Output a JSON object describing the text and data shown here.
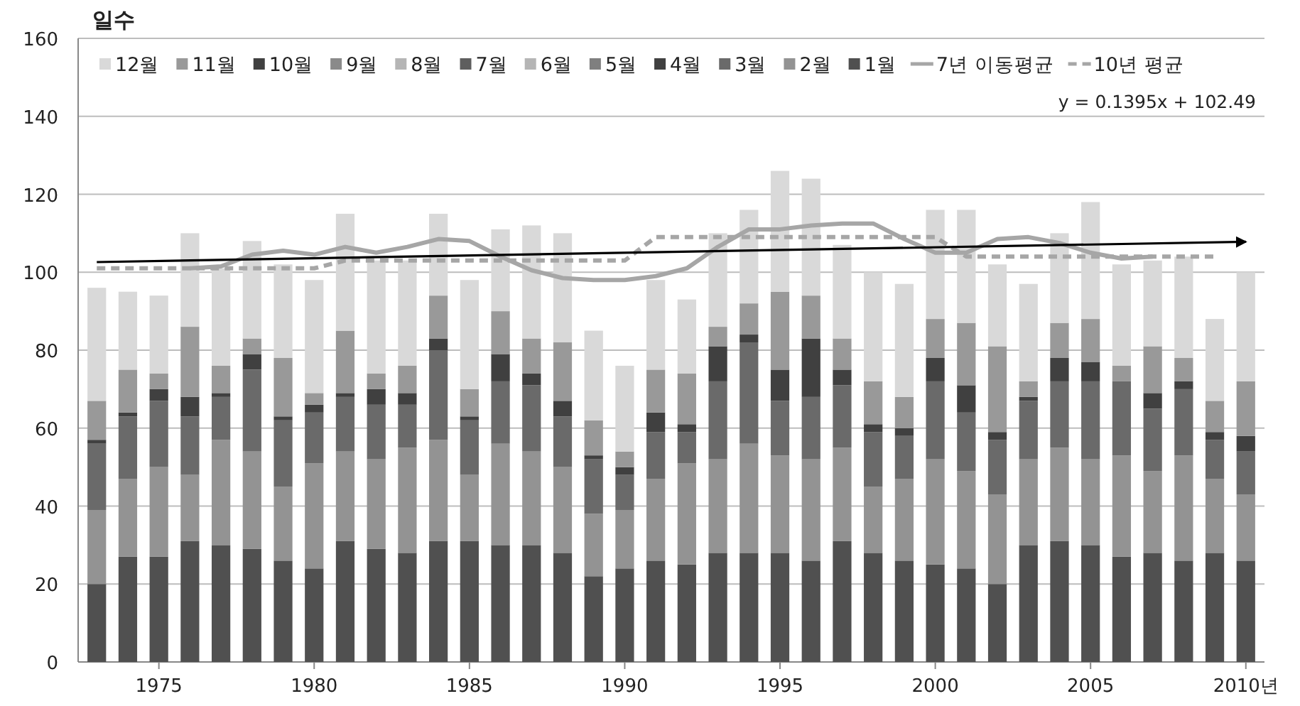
{
  "chart_data": {
    "type": "bar",
    "stacked": true,
    "ylabel": "일수",
    "x": [
      1973,
      1974,
      1975,
      1976,
      1977,
      1978,
      1979,
      1980,
      1981,
      1982,
      1983,
      1984,
      1985,
      1986,
      1987,
      1988,
      1989,
      1990,
      1991,
      1992,
      1993,
      1994,
      1995,
      1996,
      1997,
      1998,
      1999,
      2000,
      2001,
      2002,
      2003,
      2004,
      2005,
      2006,
      2007,
      2008,
      2009,
      2010
    ],
    "xlim": [
      1972.4,
      2010.6
    ],
    "xticks": [
      1975,
      1980,
      1985,
      1990,
      1995,
      2000,
      2005,
      {
        "value": 2010,
        "label": "2010년"
      }
    ],
    "ylim": [
      0,
      160
    ],
    "yticks": [
      0,
      20,
      40,
      60,
      80,
      100,
      120,
      140,
      160
    ],
    "grid": "y",
    "legend": "top",
    "annotations": [
      "y = 0.1395x + 102.49"
    ],
    "series": [
      {
        "name": "1월",
        "color": "#505050",
        "values": [
          20,
          27,
          27,
          31,
          30,
          29,
          26,
          24,
          31,
          29,
          28,
          31,
          31,
          30,
          30,
          28,
          22,
          24,
          26,
          25,
          28,
          28,
          28,
          26,
          31,
          28,
          26,
          25,
          24,
          20,
          30,
          31,
          30,
          27,
          28,
          26,
          28,
          26
        ]
      },
      {
        "name": "2월",
        "color": "#939393",
        "values": [
          19,
          20,
          23,
          17,
          27,
          25,
          19,
          27,
          23,
          23,
          27,
          26,
          17,
          26,
          24,
          22,
          16,
          15,
          21,
          26,
          24,
          28,
          25,
          26,
          24,
          17,
          21,
          27,
          25,
          23,
          22,
          24,
          22,
          26,
          21,
          27,
          19,
          17
        ]
      },
      {
        "name": "3월",
        "color": "#6a6a6a",
        "values": [
          17,
          16,
          17,
          15,
          11,
          21,
          17,
          13,
          14,
          14,
          11,
          23,
          14,
          16,
          17,
          13,
          14,
          9,
          12,
          8,
          20,
          26,
          14,
          16,
          16,
          14,
          11,
          20,
          15,
          14,
          15,
          17,
          20,
          19,
          16,
          17,
          10,
          11
        ]
      },
      {
        "name": "4월",
        "color": "#404040",
        "values": [
          1,
          1,
          3,
          5,
          1,
          4,
          1,
          2,
          1,
          4,
          3,
          3,
          1,
          7,
          3,
          4,
          1,
          2,
          5,
          2,
          9,
          2,
          8,
          15,
          4,
          2,
          2,
          6,
          7,
          2,
          1,
          6,
          5,
          0,
          4,
          2,
          2,
          4
        ]
      },
      {
        "name": "5월",
        "color": "#7f7f7f",
        "values": [
          0,
          0,
          0,
          0,
          0,
          0,
          0,
          0,
          0,
          0,
          0,
          0,
          0,
          0,
          0,
          0,
          0,
          0,
          0,
          0,
          0,
          0,
          0,
          0,
          0,
          0,
          0,
          0,
          0,
          0,
          0,
          0,
          0,
          0,
          0,
          0,
          0,
          0
        ]
      },
      {
        "name": "6월",
        "color": "#b5b5b5",
        "values": [
          0,
          0,
          0,
          0,
          0,
          0,
          0,
          0,
          0,
          0,
          0,
          0,
          0,
          0,
          0,
          0,
          0,
          0,
          0,
          0,
          0,
          0,
          0,
          0,
          0,
          0,
          0,
          0,
          0,
          0,
          0,
          0,
          0,
          0,
          0,
          0,
          0,
          0
        ]
      },
      {
        "name": "7월",
        "color": "#5e5e5e",
        "values": [
          0,
          0,
          0,
          0,
          0,
          0,
          0,
          0,
          0,
          0,
          0,
          0,
          0,
          0,
          0,
          0,
          0,
          0,
          0,
          0,
          0,
          0,
          0,
          0,
          0,
          0,
          0,
          0,
          0,
          0,
          0,
          0,
          0,
          0,
          0,
          0,
          0,
          0
        ]
      },
      {
        "name": "8월",
        "color": "#b5b5b5",
        "values": [
          0,
          0,
          0,
          0,
          0,
          0,
          0,
          0,
          0,
          0,
          0,
          0,
          0,
          0,
          0,
          0,
          0,
          0,
          0,
          0,
          0,
          0,
          0,
          0,
          0,
          0,
          0,
          0,
          0,
          0,
          0,
          0,
          0,
          0,
          0,
          0,
          0,
          0
        ]
      },
      {
        "name": "9월",
        "color": "#8a8a8a",
        "values": [
          0,
          0,
          0,
          0,
          0,
          0,
          0,
          0,
          0,
          0,
          0,
          0,
          0,
          0,
          0,
          0,
          0,
          0,
          0,
          0,
          0,
          0,
          0,
          0,
          0,
          0,
          0,
          0,
          0,
          0,
          0,
          0,
          0,
          0,
          0,
          0,
          0,
          0
        ]
      },
      {
        "name": "10월",
        "color": "#404040",
        "values": [
          0,
          0,
          0,
          0,
          0,
          0,
          0,
          0,
          0,
          0,
          0,
          0,
          0,
          0,
          0,
          0,
          0,
          0,
          0,
          0,
          0,
          0,
          0,
          0,
          0,
          0,
          0,
          0,
          0,
          0,
          0,
          0,
          0,
          0,
          0,
          0,
          0,
          0
        ]
      },
      {
        "name": "11월",
        "color": "#999999",
        "values": [
          10,
          11,
          4,
          18,
          7,
          4,
          15,
          3,
          16,
          4,
          7,
          11,
          7,
          11,
          9,
          15,
          9,
          4,
          11,
          13,
          5,
          8,
          20,
          11,
          8,
          11,
          8,
          10,
          16,
          22,
          4,
          9,
          11,
          4,
          12,
          6,
          8,
          14
        ]
      },
      {
        "name": "12월",
        "color": "#d9d9d9",
        "values": [
          29,
          20,
          20,
          24,
          25,
          25,
          24,
          29,
          30,
          29,
          27,
          21,
          28,
          21,
          29,
          28,
          23,
          22,
          23,
          19,
          24,
          24,
          31,
          30,
          24,
          28,
          29,
          28,
          29,
          21,
          25,
          23,
          30,
          26,
          22,
          26,
          21,
          28
        ]
      },
      {
        "name": "7년 이동평균",
        "type": "line",
        "color": "#a6a6a6",
        "line_style": "solid",
        "x": [
          1976,
          1977,
          1978,
          1979,
          1980,
          1981,
          1982,
          1983,
          1984,
          1985,
          1986,
          1987,
          1988,
          1989,
          1990,
          1991,
          1992,
          1993,
          1994,
          1995,
          1996,
          1997,
          1998,
          1999,
          2000,
          2001,
          2002,
          2003,
          2004,
          2005,
          2006,
          2007
        ],
        "values": [
          101,
          101.5,
          104.5,
          105.5,
          104.5,
          106.5,
          105,
          106.5,
          108.5,
          108,
          104,
          100.5,
          98.5,
          98,
          98,
          99,
          101,
          106.5,
          111,
          111,
          112,
          112.5,
          112.5,
          108.5,
          105,
          105,
          108.5,
          109,
          107.5,
          105,
          103.5,
          104
        ]
      },
      {
        "name": "10년 평균",
        "type": "line",
        "color": "#a6a6a6",
        "line_style": "dashed",
        "x": [
          1973,
          1974,
          1975,
          1976,
          1977,
          1978,
          1979,
          1980,
          1981,
          1982,
          1983,
          1984,
          1985,
          1986,
          1987,
          1988,
          1989,
          1990,
          1991,
          1992,
          1993,
          1994,
          1995,
          1996,
          1997,
          1998,
          1999,
          2000,
          2001,
          2002,
          2003,
          2004,
          2005,
          2006,
          2007,
          2008,
          2009
        ],
        "values": [
          101,
          101,
          101,
          101,
          101,
          101,
          101,
          101,
          103,
          103,
          103,
          103,
          103,
          103,
          103,
          103,
          103,
          103,
          109,
          109,
          109,
          109,
          109,
          109,
          109,
          109,
          109,
          109,
          104,
          104,
          104,
          104,
          104,
          104,
          104,
          104,
          104
        ]
      },
      {
        "type": "line",
        "color": "#000000",
        "line_style": "solid",
        "x": [
          1973,
          2010
        ],
        "values": [
          102.6,
          107.8
        ]
      }
    ]
  }
}
